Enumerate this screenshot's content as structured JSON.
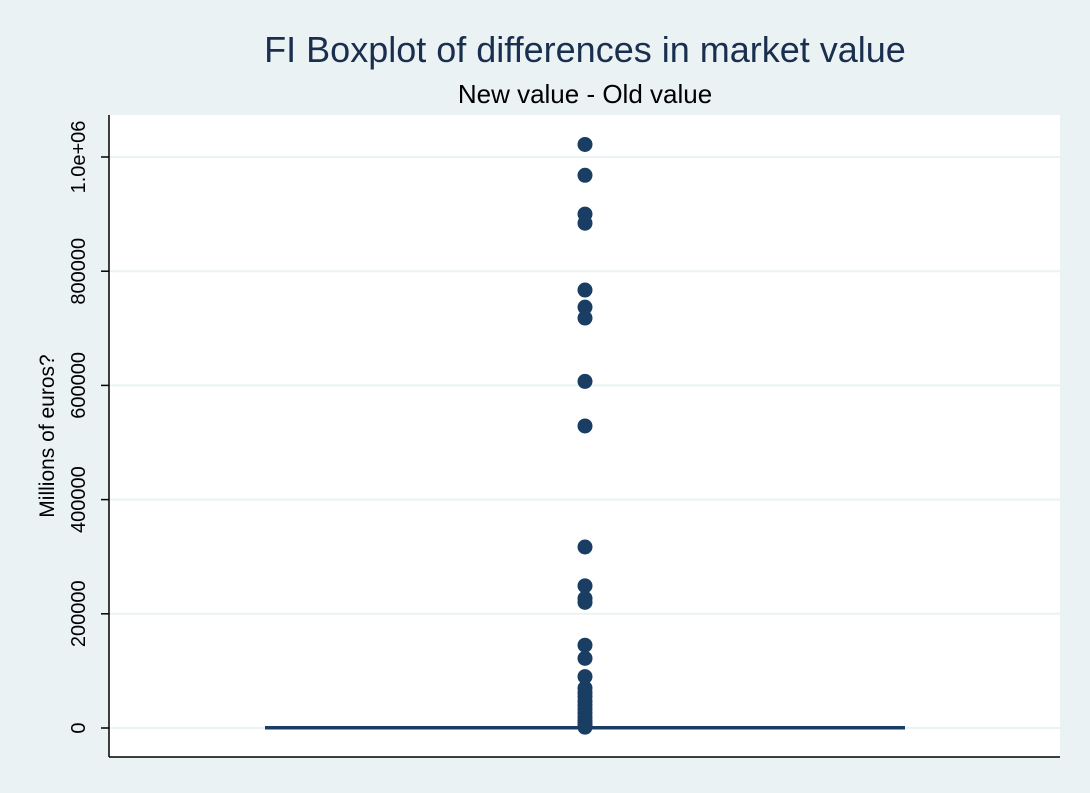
{
  "chart_data": {
    "type": "box",
    "title": "FI Boxplot of differences in market value",
    "subtitle": "New value - Old value",
    "ylabel": "Millions of euros?",
    "xlabel": "",
    "ylim": [
      -50000,
      1070000
    ],
    "yticks": [
      0,
      200000,
      400000,
      600000,
      800000,
      1000000
    ],
    "ytick_labels": [
      "0",
      "200000",
      "400000",
      "600000",
      "800000",
      "1.0e+06"
    ],
    "grid": true,
    "box": {
      "q1": 0,
      "median": 0,
      "q3": 0,
      "lower_whisker": 0,
      "upper_whisker": 0
    },
    "outliers": [
      1022000,
      968000,
      900000,
      884000,
      767000,
      737000,
      718000,
      607000,
      529000,
      317000,
      249000,
      227000,
      220000,
      145000,
      122000,
      90000,
      70000,
      62000,
      55000,
      47000,
      40000,
      33000,
      26000,
      19000,
      13000,
      8000,
      4000,
      1500
    ],
    "colors": {
      "background": "#eaf2f3",
      "plot_area": "#ffffff",
      "gridline": "#eaf2f3",
      "marker": "#1a3d63",
      "box": "#1a3d63",
      "title": "#1a2f4f"
    }
  }
}
